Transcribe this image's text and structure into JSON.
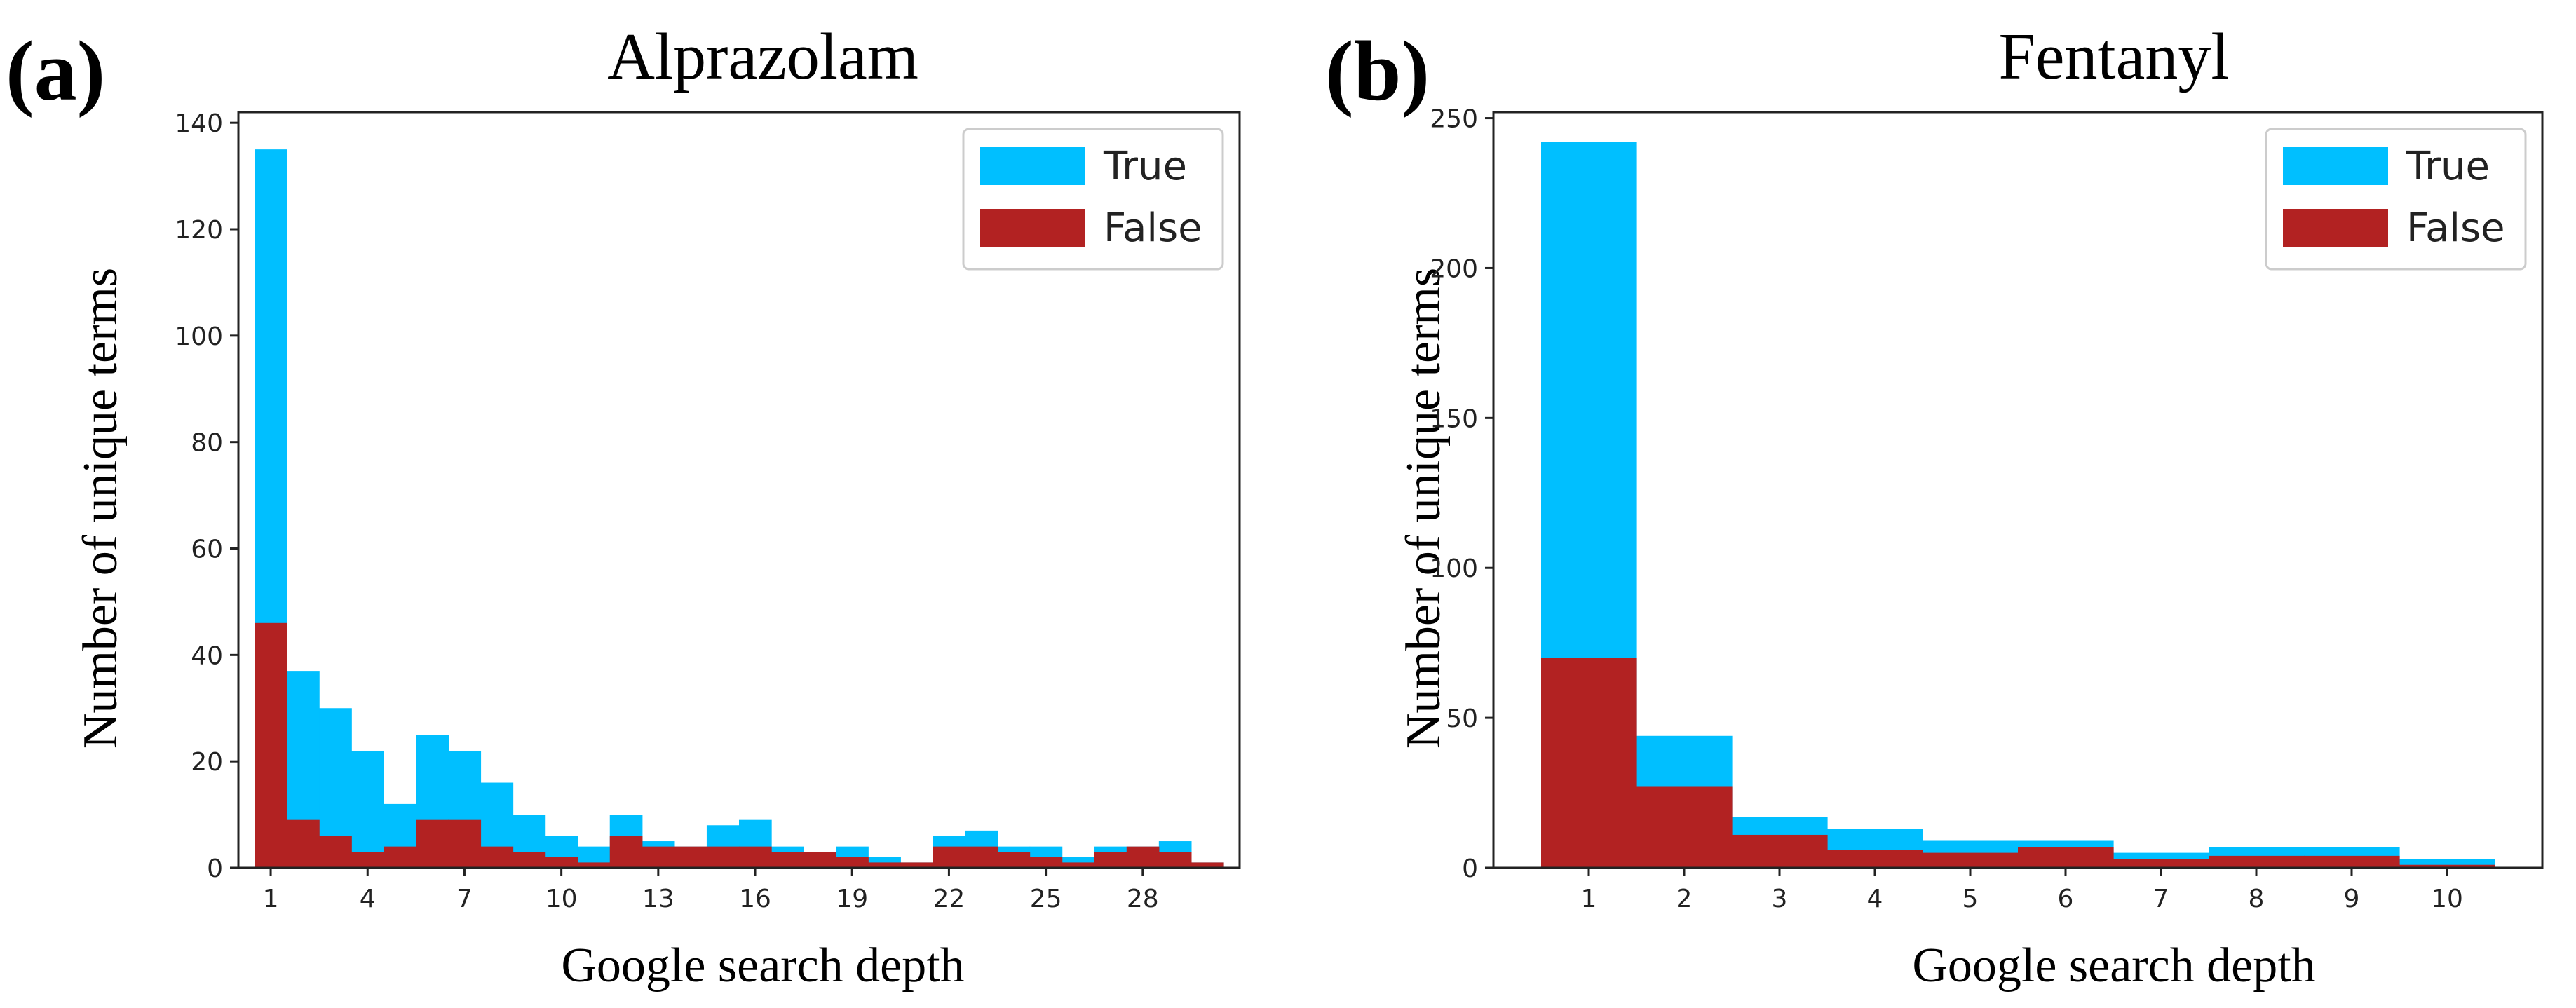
{
  "colors": {
    "true": "#00BFFF",
    "false": "#B22222"
  },
  "chart_data": [
    {
      "panel_label": "(a)",
      "type": "bar",
      "subtype": "overlaid-histogram",
      "title": "Alprazolam",
      "xlabel": "Google search depth",
      "ylabel": "Number of unique terms",
      "xlim": [
        0,
        31
      ],
      "ylim": [
        0,
        142
      ],
      "x": [
        1,
        2,
        3,
        4,
        5,
        6,
        7,
        8,
        9,
        10,
        11,
        12,
        13,
        14,
        15,
        16,
        17,
        18,
        19,
        20,
        21,
        22,
        23,
        24,
        25,
        26,
        27,
        28,
        29,
        30
      ],
      "xticks": [
        1,
        4,
        7,
        10,
        13,
        16,
        19,
        22,
        25,
        28
      ],
      "yticks": [
        0,
        20,
        40,
        60,
        80,
        100,
        120,
        140
      ],
      "legend_position": "top-right",
      "series": [
        {
          "name": "True",
          "color_key": "true",
          "values": [
            135,
            37,
            30,
            22,
            12,
            25,
            22,
            16,
            10,
            6,
            4,
            10,
            5,
            4,
            8,
            9,
            4,
            3,
            4,
            2,
            1,
            6,
            7,
            4,
            4,
            2,
            4,
            4,
            5,
            1
          ]
        },
        {
          "name": "False",
          "color_key": "false",
          "values": [
            46,
            9,
            6,
            3,
            4,
            9,
            9,
            4,
            3,
            2,
            1,
            6,
            4,
            4,
            4,
            4,
            3,
            3,
            2,
            1,
            1,
            4,
            4,
            3,
            2,
            1,
            3,
            4,
            3,
            1
          ]
        }
      ]
    },
    {
      "panel_label": "(b)",
      "type": "bar",
      "subtype": "overlaid-histogram",
      "title": "Fentanyl",
      "xlabel": "Google search depth",
      "ylabel": "Number of unique terms",
      "xlim": [
        0,
        11
      ],
      "ylim": [
        0,
        252
      ],
      "x": [
        1,
        2,
        3,
        4,
        5,
        6,
        7,
        8,
        9,
        10
      ],
      "xticks": [
        1,
        2,
        3,
        4,
        5,
        6,
        7,
        8,
        9,
        10
      ],
      "yticks": [
        0,
        50,
        100,
        150,
        200,
        250
      ],
      "legend_position": "top-right",
      "series": [
        {
          "name": "True",
          "color_key": "true",
          "values": [
            242,
            44,
            17,
            13,
            9,
            9,
            5,
            7,
            7,
            3
          ]
        },
        {
          "name": "False",
          "color_key": "false",
          "values": [
            70,
            27,
            11,
            6,
            5,
            7,
            3,
            4,
            4,
            1
          ]
        }
      ]
    }
  ]
}
